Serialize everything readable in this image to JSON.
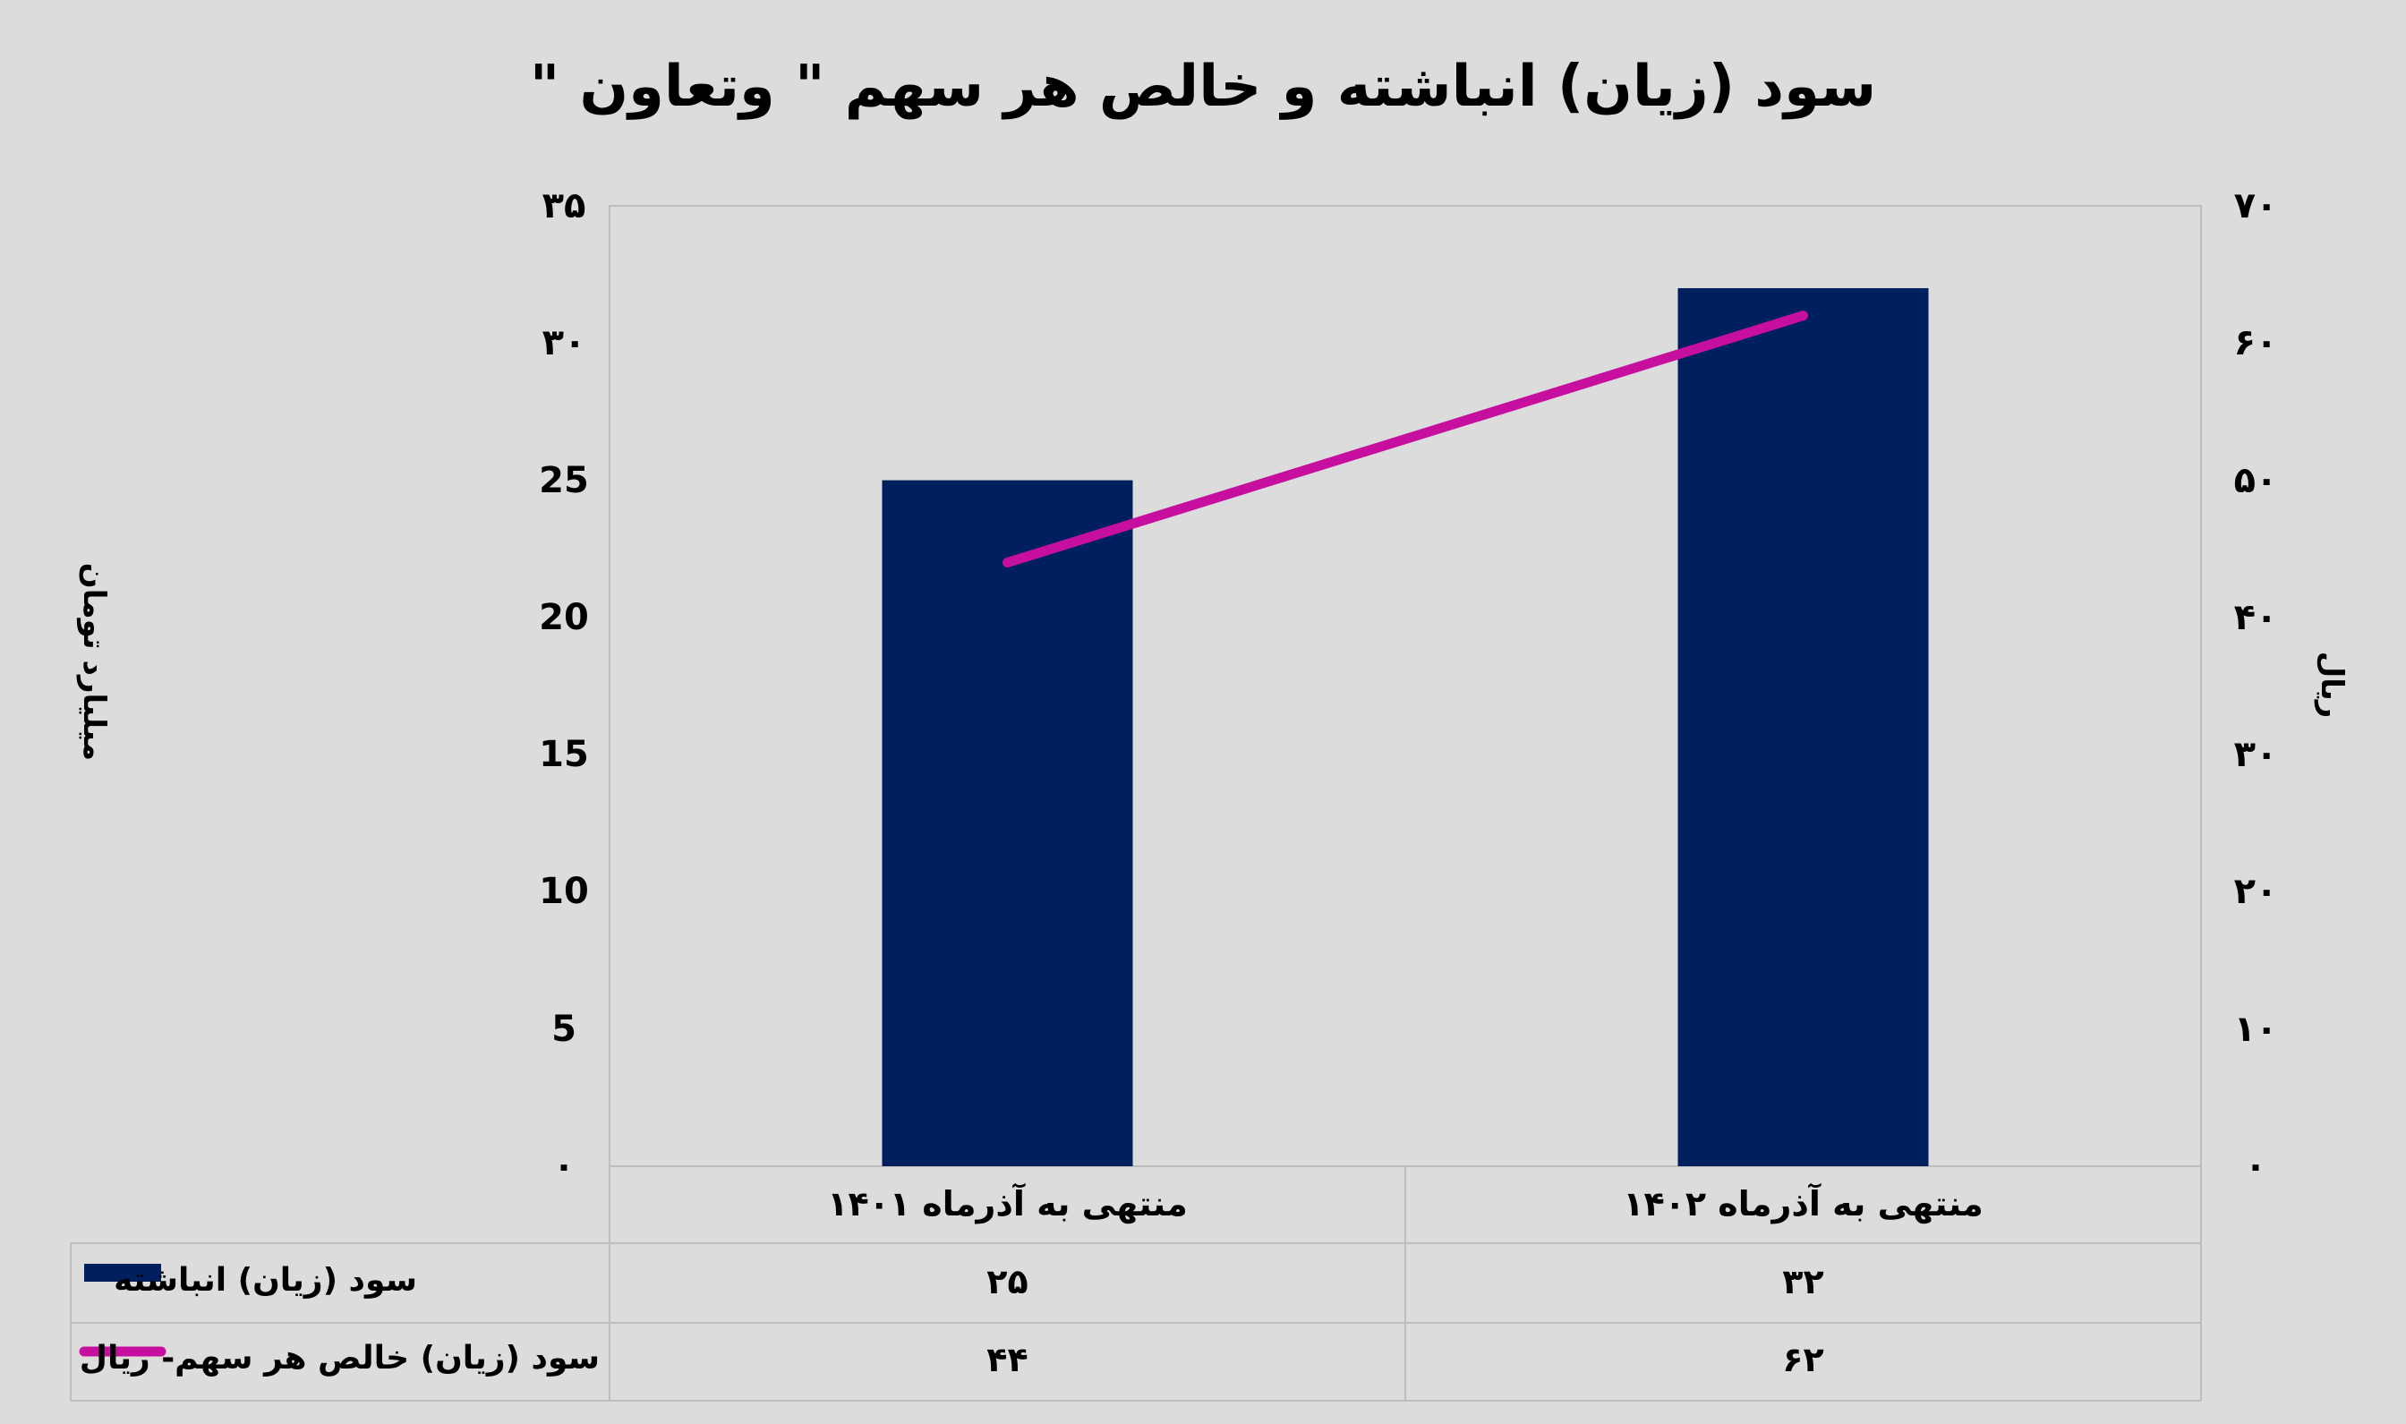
{
  "colors": {
    "background": "#dcdcdc",
    "plot_border": "#bdbdbd",
    "bar": "#001f5f",
    "line": "#c60f9e"
  },
  "chart_data": {
    "type": "bar",
    "title": "سود (زیان) انباشته و خالص هر سهم \" وتعاون \"",
    "categories": [
      "منتهی به آذرماه ۱۴۰۱",
      "منتهی به آذرماه ۱۴۰۲"
    ],
    "series": [
      {
        "name": "سود (زیان) انباشته",
        "type": "bar",
        "axis": "left",
        "values": [
          25,
          32
        ],
        "value_labels": [
          "۲۵",
          "۳۲"
        ]
      },
      {
        "name": "سود (زیان) خالص هر سهم- ریال",
        "type": "line",
        "axis": "right",
        "values": [
          44,
          62
        ],
        "value_labels": [
          "۴۴",
          "۶۲"
        ]
      }
    ],
    "ylabel_left": "میلیارد تومان",
    "ylabel_right": "ریال",
    "ylim_left": [
      0,
      35
    ],
    "ylim_right": [
      0,
      70
    ],
    "left_ticks": [
      "۰",
      "5",
      "10",
      "15",
      "20",
      "25",
      "۳۰",
      "۳۵"
    ],
    "right_ticks": [
      "۰",
      "۱۰",
      "۲۰",
      "۳۰",
      "۴۰",
      "۵۰",
      "۶۰",
      "۷۰"
    ],
    "grid": false,
    "legend": "data-table below chart"
  }
}
